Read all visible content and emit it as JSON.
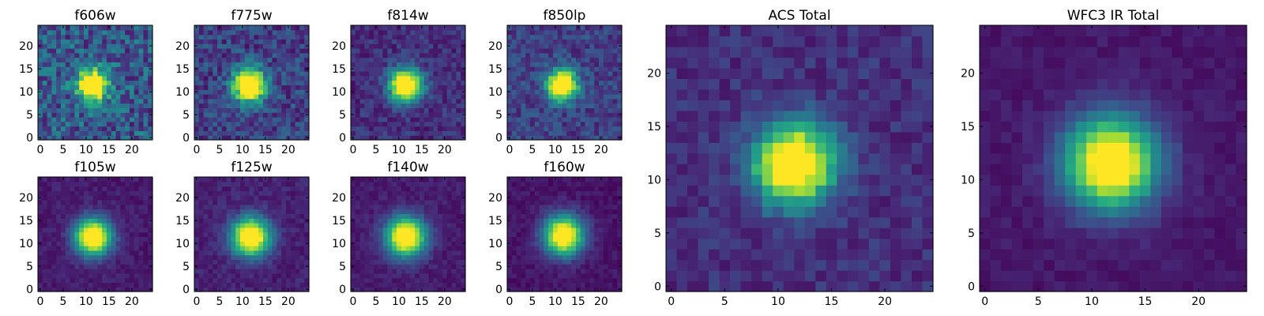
{
  "chart_data": {
    "type": "heatmap",
    "colormap": "viridis",
    "grid": false,
    "legend": "none",
    "panels": [
      {
        "title": "f606w",
        "xlim": [
          0,
          24
        ],
        "ylim": [
          0,
          24
        ],
        "xticks": [
          0,
          5,
          10,
          15,
          20
        ],
        "yticks": [
          0,
          5,
          10,
          15,
          20
        ],
        "center": [
          11.5,
          11.5
        ],
        "sigma": 2.3,
        "background": 0.28,
        "noise": 0.2
      },
      {
        "title": "f775w",
        "xlim": [
          0,
          24
        ],
        "ylim": [
          0,
          24
        ],
        "xticks": [
          0,
          5,
          10,
          15,
          20
        ],
        "yticks": [
          0,
          5,
          10,
          15,
          20
        ],
        "center": [
          11.5,
          11.5
        ],
        "sigma": 2.5,
        "background": 0.2,
        "noise": 0.15
      },
      {
        "title": "f814w",
        "xlim": [
          0,
          24
        ],
        "ylim": [
          0,
          24
        ],
        "xticks": [
          0,
          5,
          10,
          15,
          20
        ],
        "yticks": [
          0,
          5,
          10,
          15,
          20
        ],
        "center": [
          11.5,
          11.5
        ],
        "sigma": 2.5,
        "background": 0.14,
        "noise": 0.1
      },
      {
        "title": "f850lp",
        "xlim": [
          0,
          24
        ],
        "ylim": [
          0,
          24
        ],
        "xticks": [
          0,
          5,
          10,
          15,
          20
        ],
        "yticks": [
          0,
          5,
          10,
          15,
          20
        ],
        "center": [
          11.5,
          11.5
        ],
        "sigma": 2.3,
        "background": 0.2,
        "noise": 0.12
      },
      {
        "title": "f105w",
        "xlim": [
          0,
          24
        ],
        "ylim": [
          0,
          24
        ],
        "xticks": [
          0,
          5,
          10,
          15,
          20
        ],
        "yticks": [
          0,
          5,
          10,
          15,
          20
        ],
        "center": [
          11.5,
          11.5
        ],
        "sigma": 2.8,
        "background": 0.08,
        "noise": 0.05
      },
      {
        "title": "f125w",
        "xlim": [
          0,
          24
        ],
        "ylim": [
          0,
          24
        ],
        "xticks": [
          0,
          5,
          10,
          15,
          20
        ],
        "yticks": [
          0,
          5,
          10,
          15,
          20
        ],
        "center": [
          11.8,
          11.5
        ],
        "sigma": 2.9,
        "background": 0.1,
        "noise": 0.06
      },
      {
        "title": "f140w",
        "xlim": [
          0,
          24
        ],
        "ylim": [
          0,
          24
        ],
        "xticks": [
          0,
          5,
          10,
          15,
          20
        ],
        "yticks": [
          0,
          5,
          10,
          15,
          20
        ],
        "center": [
          11.5,
          11.5
        ],
        "sigma": 3.0,
        "background": 0.08,
        "noise": 0.05
      },
      {
        "title": "f160w",
        "xlim": [
          0,
          24
        ],
        "ylim": [
          0,
          24
        ],
        "xticks": [
          0,
          5,
          10,
          15,
          20
        ],
        "yticks": [
          0,
          5,
          10,
          15,
          20
        ],
        "center": [
          11.8,
          11.8
        ],
        "sigma": 3.0,
        "background": 0.06,
        "noise": 0.05
      },
      {
        "title": "ACS Total",
        "xlim": [
          0,
          24
        ],
        "ylim": [
          0,
          24
        ],
        "xticks": [
          0,
          5,
          10,
          15,
          20
        ],
        "yticks": [
          0,
          5,
          10,
          15,
          20
        ],
        "center": [
          11.5,
          11.5
        ],
        "sigma": 2.6,
        "background": 0.14,
        "noise": 0.08
      },
      {
        "title": "WFC3 IR Total",
        "xlim": [
          0,
          24
        ],
        "ylim": [
          0,
          24
        ],
        "xticks": [
          0,
          5,
          10,
          15,
          20
        ],
        "yticks": [
          0,
          5,
          10,
          15,
          20
        ],
        "center": [
          11.8,
          11.6
        ],
        "sigma": 3.0,
        "background": 0.07,
        "noise": 0.04
      }
    ]
  }
}
